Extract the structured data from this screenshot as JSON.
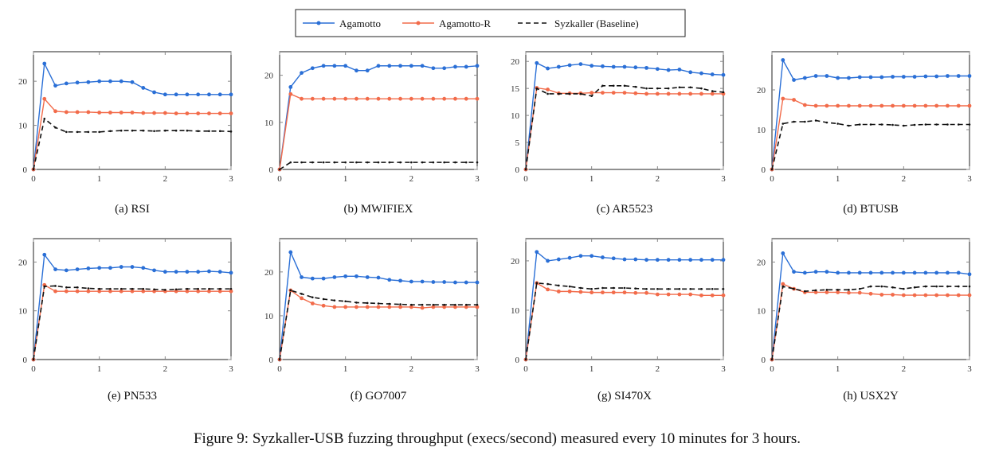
{
  "chart_data": {
    "type": "line",
    "figure_caption": "Figure 9: Syzkaller-USB fuzzing throughput (execs/second) measured every 10 minutes for 3 hours.",
    "legend": {
      "position": "top-center",
      "entries": [
        "Agamotto",
        "Agamotto-R",
        "Syzkaller (Baseline)"
      ]
    },
    "colors": {
      "Agamotto": "#2a6fd6",
      "Agamotto-R": "#f26b4a",
      "Syzkaller (Baseline)": "#111111"
    },
    "x": [
      0,
      0.1667,
      0.3333,
      0.5,
      0.6667,
      0.8333,
      1,
      1.1667,
      1.3333,
      1.5,
      1.6667,
      1.8333,
      2,
      2.1667,
      2.3333,
      2.5,
      2.6667,
      2.8333,
      3
    ],
    "xlim": [
      0,
      3
    ],
    "xticks": [
      "0",
      "1",
      "2",
      "3"
    ],
    "panels": [
      {
        "caption": "(a) RSI",
        "ylim": [
          0,
          26.7
        ],
        "yticks": [
          0,
          10,
          20
        ],
        "series": [
          {
            "name": "Agamotto",
            "values": [
              0,
              24,
              19,
              19.5,
              19.7,
              19.8,
              20,
              20,
              20,
              19.8,
              18.5,
              17.5,
              17,
              17,
              17,
              17,
              17,
              17,
              17
            ]
          },
          {
            "name": "Agamotto-R",
            "values": [
              0,
              16,
              13.2,
              13,
              13,
              13,
              12.9,
              12.9,
              12.9,
              12.9,
              12.8,
              12.8,
              12.8,
              12.7,
              12.7,
              12.7,
              12.7,
              12.7,
              12.7
            ]
          },
          {
            "name": "Syzkaller (Baseline)",
            "values": [
              0,
              11.5,
              9.5,
              8.5,
              8.5,
              8.5,
              8.5,
              8.7,
              8.8,
              8.8,
              8.8,
              8.7,
              8.8,
              8.8,
              8.8,
              8.7,
              8.7,
              8.7,
              8.6
            ]
          }
        ]
      },
      {
        "caption": "(b) MWIFIEX",
        "ylim": [
          0,
          25
        ],
        "yticks": [
          0,
          10,
          20
        ],
        "series": [
          {
            "name": "Agamotto",
            "values": [
              0,
              17.5,
              20.5,
              21.5,
              22,
              22,
              22,
              21,
              21,
              22,
              22,
              22,
              22,
              22,
              21.5,
              21.5,
              21.8,
              21.8,
              22
            ]
          },
          {
            "name": "Agamotto-R",
            "values": [
              0,
              16,
              15,
              15,
              15,
              15,
              15,
              15,
              15,
              15,
              15,
              15,
              15,
              15,
              15,
              15,
              15,
              15,
              15
            ]
          },
          {
            "name": "Syzkaller (Baseline)",
            "values": [
              0,
              1.5,
              1.5,
              1.5,
              1.5,
              1.5,
              1.5,
              1.5,
              1.5,
              1.5,
              1.5,
              1.5,
              1.5,
              1.5,
              1.5,
              1.5,
              1.5,
              1.5,
              1.5
            ]
          }
        ]
      },
      {
        "caption": "(c) AR5523",
        "ylim": [
          0,
          21.8
        ],
        "yticks": [
          0,
          5,
          10,
          15,
          20
        ],
        "series": [
          {
            "name": "Agamotto",
            "values": [
              0,
              19.7,
              18.7,
              19,
              19.3,
              19.5,
              19.2,
              19.1,
              19,
              19,
              18.9,
              18.8,
              18.6,
              18.4,
              18.5,
              18,
              17.8,
              17.6,
              17.5
            ]
          },
          {
            "name": "Agamotto-R",
            "values": [
              0,
              15.1,
              14.8,
              14.1,
              14.1,
              14.1,
              14.2,
              14.2,
              14.2,
              14.2,
              14.1,
              14,
              14,
              14,
              14,
              14,
              14,
              14,
              14
            ]
          },
          {
            "name": "Syzkaller (Baseline)",
            "values": [
              0,
              15,
              14,
              14,
              14,
              14,
              13.6,
              15.5,
              15.5,
              15.5,
              15.3,
              15,
              15,
              15,
              15.2,
              15.2,
              15,
              14.5,
              14.3
            ]
          }
        ]
      },
      {
        "caption": "(d) BTUSB",
        "ylim": [
          0,
          29.6
        ],
        "yticks": [
          0,
          10,
          20
        ],
        "series": [
          {
            "name": "Agamotto",
            "values": [
              0,
              27.5,
              22.5,
              23,
              23.5,
              23.5,
              23,
              23,
              23.2,
              23.2,
              23.2,
              23.3,
              23.3,
              23.3,
              23.4,
              23.4,
              23.5,
              23.5,
              23.5
            ]
          },
          {
            "name": "Agamotto-R",
            "values": [
              0,
              17.8,
              17.5,
              16.2,
              16,
              16,
              16,
              16,
              16,
              16,
              16,
              16,
              16,
              16,
              16,
              16,
              16,
              16,
              16
            ]
          },
          {
            "name": "Syzkaller (Baseline)",
            "values": [
              0,
              11.5,
              12,
              12,
              12.3,
              11.8,
              11.5,
              11,
              11.3,
              11.3,
              11.3,
              11.2,
              11,
              11.2,
              11.3,
              11.3,
              11.3,
              11.3,
              11.3
            ]
          }
        ]
      },
      {
        "caption": "(e) PN533",
        "ylim": [
          0,
          24.8
        ],
        "yticks": [
          0,
          10,
          20
        ],
        "series": [
          {
            "name": "Agamotto",
            "values": [
              0,
              21.5,
              18.5,
              18.3,
              18.5,
              18.7,
              18.8,
              18.8,
              19,
              19,
              18.8,
              18.3,
              18,
              18,
              18,
              18,
              18.1,
              18,
              17.8
            ]
          },
          {
            "name": "Agamotto-R",
            "values": [
              0,
              15.3,
              14,
              14,
              14,
              14,
              14,
              14,
              14,
              14,
              14,
              14,
              14,
              14,
              14,
              14,
              14,
              14,
              14
            ]
          },
          {
            "name": "Syzkaller (Baseline)",
            "values": [
              0,
              15,
              15.1,
              14.8,
              14.8,
              14.6,
              14.5,
              14.5,
              14.5,
              14.5,
              14.5,
              14.4,
              14.3,
              14.4,
              14.5,
              14.5,
              14.5,
              14.5,
              14.5
            ]
          }
        ]
      },
      {
        "caption": "(f) GO7007",
        "ylim": [
          0,
          27.6
        ],
        "yticks": [
          0,
          10,
          20
        ],
        "series": [
          {
            "name": "Agamotto",
            "values": [
              0,
              24.5,
              18.8,
              18.5,
              18.5,
              18.8,
              19,
              19,
              18.8,
              18.7,
              18.2,
              18,
              17.8,
              17.8,
              17.7,
              17.7,
              17.6,
              17.6,
              17.6
            ]
          },
          {
            "name": "Agamotto-R",
            "values": [
              0,
              15.8,
              14,
              12.8,
              12.3,
              12,
              12,
              12,
              12,
              12,
              12,
              12,
              12,
              11.8,
              12,
              12,
              12,
              12,
              12
            ]
          },
          {
            "name": "Syzkaller (Baseline)",
            "values": [
              0,
              15.8,
              15,
              14.2,
              13.8,
              13.5,
              13.3,
              13,
              12.9,
              12.8,
              12.7,
              12.6,
              12.5,
              12.5,
              12.5,
              12.5,
              12.5,
              12.5,
              12.5
            ]
          }
        ]
      },
      {
        "caption": "(g) SI470X",
        "ylim": [
          0,
          24.5
        ],
        "yticks": [
          0,
          10,
          20
        ],
        "series": [
          {
            "name": "Agamotto",
            "values": [
              0,
              21.8,
              20,
              20.3,
              20.6,
              21,
              21,
              20.7,
              20.5,
              20.3,
              20.3,
              20.2,
              20.2,
              20.2,
              20.2,
              20.2,
              20.2,
              20.2,
              20.2
            ]
          },
          {
            "name": "Agamotto-R",
            "values": [
              0,
              15.5,
              14.2,
              13.8,
              13.8,
              13.7,
              13.6,
              13.6,
              13.6,
              13.6,
              13.5,
              13.5,
              13.2,
              13.2,
              13.2,
              13.2,
              13,
              13,
              13
            ]
          },
          {
            "name": "Syzkaller (Baseline)",
            "values": [
              0,
              15.5,
              15.3,
              15,
              14.8,
              14.5,
              14.3,
              14.5,
              14.5,
              14.5,
              14.4,
              14.3,
              14.3,
              14.3,
              14.3,
              14.3,
              14.3,
              14.3,
              14.3
            ]
          }
        ]
      },
      {
        "caption": "(h) USX2Y",
        "ylim": [
          0,
          24.8
        ],
        "yticks": [
          0,
          10,
          20
        ],
        "series": [
          {
            "name": "Agamotto",
            "values": [
              0,
              21.8,
              18,
              17.8,
              18,
              18,
              17.8,
              17.8,
              17.8,
              17.8,
              17.8,
              17.8,
              17.8,
              17.8,
              17.8,
              17.8,
              17.8,
              17.8,
              17.5
            ]
          },
          {
            "name": "Agamotto-R",
            "values": [
              0,
              15.5,
              14.5,
              13.8,
              13.8,
              13.8,
              13.8,
              13.7,
              13.7,
              13.5,
              13.3,
              13.3,
              13.2,
              13.2,
              13.2,
              13.2,
              13.2,
              13.2,
              13.2
            ]
          },
          {
            "name": "Syzkaller (Baseline)",
            "values": [
              0,
              15,
              14.5,
              14,
              14.2,
              14.3,
              14.3,
              14.3,
              14.5,
              15,
              15,
              14.8,
              14.5,
              14.8,
              15,
              15,
              15,
              15,
              15
            ]
          }
        ]
      }
    ]
  }
}
